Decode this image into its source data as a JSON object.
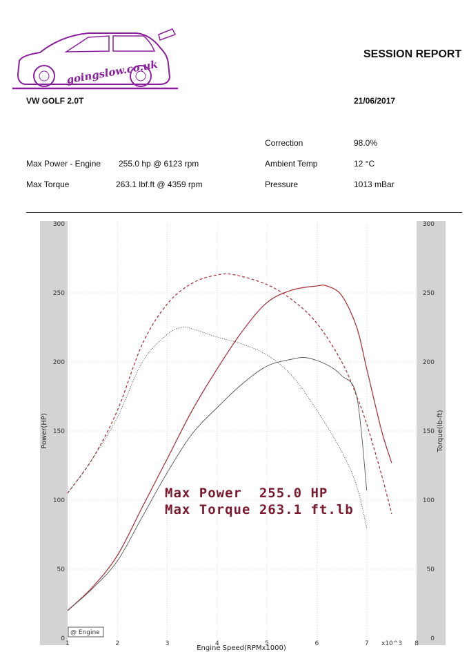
{
  "header": {
    "logo_text": "goingslow.co.uk",
    "report_title": "SESSION REPORT",
    "car_model": "VW GOLF 2.0T",
    "date": "21/06/2017"
  },
  "info": {
    "correction_label": "Correction",
    "correction_value": "98.0%",
    "max_power_label": "Max Power - Engine",
    "max_power_value": "255.0 hp @ 6123 rpm",
    "ambient_label": "Ambient Temp",
    "ambient_value": "12 °C",
    "max_torque_label": "Max Torque",
    "max_torque_value": "263.1 lbf.ft @ 4359 rpm",
    "pressure_label": "Pressure",
    "pressure_value": "1013 mBar"
  },
  "colors": {
    "run_primary": "#a8383f",
    "run_secondary": "#555555",
    "logo": "#8a1f9e"
  },
  "chart_data": {
    "type": "line",
    "title": "",
    "xlabel": "Engine Speed(RPMx1000)",
    "ylabel_left": "Power(HP)",
    "ylabel_right": "Torque(lb-ft)",
    "x_multiplier_label": "x10^3",
    "xlim": [
      1,
      8
    ],
    "ylim": [
      0,
      300
    ],
    "xticks": [
      "1",
      "2",
      "3",
      "4",
      "5",
      "6",
      "7",
      "8"
    ],
    "yticks": [
      "0",
      "50",
      "100",
      "150",
      "200",
      "250",
      "300"
    ],
    "legend": "@ Engine",
    "legend_position": "bottom-left",
    "annotations": [
      "Max Power  255.0 HP",
      "Max Torque 263.1 ft.lb"
    ],
    "series": [
      {
        "style": "solid",
        "color": "#a8383f",
        "x": [
          1.0,
          1.5,
          2.0,
          2.5,
          3.0,
          3.5,
          4.0,
          4.5,
          5.0,
          5.5,
          6.0,
          6.2,
          6.5,
          6.8,
          7.0,
          7.3,
          7.5
        ],
        "y": [
          20,
          37,
          60,
          95,
          130,
          165,
          195,
          222,
          243,
          252,
          255,
          255,
          248,
          225,
          195,
          150,
          127
        ]
      },
      {
        "style": "dashed",
        "color": "#a8383f",
        "x": [
          1.0,
          1.5,
          2.0,
          2.5,
          3.0,
          3.5,
          4.0,
          4.36,
          5.0,
          5.5,
          6.0,
          6.5,
          6.8,
          7.0,
          7.3,
          7.5
        ],
        "y": [
          105,
          130,
          165,
          213,
          242,
          257,
          263,
          263,
          256,
          245,
          228,
          200,
          175,
          155,
          118,
          90
        ]
      },
      {
        "style": "solid",
        "color": "#555555",
        "x": [
          1.0,
          1.5,
          2.0,
          2.5,
          3.0,
          3.5,
          4.0,
          4.5,
          5.0,
          5.5,
          5.8,
          6.2,
          6.5,
          6.8,
          7.0
        ],
        "y": [
          20,
          36,
          56,
          88,
          120,
          148,
          167,
          184,
          197,
          202,
          203,
          198,
          190,
          175,
          107
        ]
      },
      {
        "style": "dotted",
        "color": "#555555",
        "x": [
          1.0,
          1.5,
          2.0,
          2.5,
          3.0,
          3.3,
          3.5,
          4.0,
          4.5,
          5.0,
          5.5,
          6.0,
          6.5,
          6.8,
          7.0
        ],
        "y": [
          105,
          130,
          160,
          200,
          220,
          225,
          224,
          218,
          213,
          205,
          190,
          165,
          135,
          110,
          80
        ]
      }
    ]
  }
}
